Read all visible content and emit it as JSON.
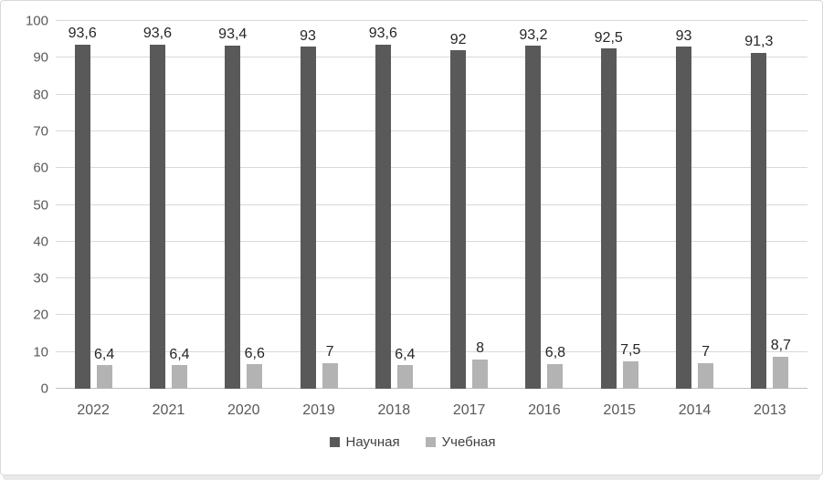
{
  "chart_data": {
    "type": "bar",
    "title": "",
    "categories": [
      "2022",
      "2021",
      "2020",
      "2019",
      "2018",
      "2017",
      "2016",
      "2015",
      "2014",
      "2013"
    ],
    "series": [
      {
        "name": "Научная",
        "color": "#595959",
        "values": [
          93.6,
          93.6,
          93.4,
          93,
          93.6,
          92,
          93.2,
          92.5,
          93,
          91.3
        ],
        "labels": [
          "93,6",
          "93,6",
          "93,4",
          "93",
          "93,6",
          "92",
          "93,2",
          "92,5",
          "93",
          "91,3"
        ]
      },
      {
        "name": "Учебная",
        "color": "#b3b3b3",
        "values": [
          6.4,
          6.4,
          6.6,
          7,
          6.4,
          8,
          6.8,
          7.5,
          7,
          8.7
        ],
        "labels": [
          "6,4",
          "6,4",
          "6,6",
          "7",
          "6,4",
          "8",
          "6,8",
          "7,5",
          "7",
          "8,7"
        ]
      }
    ],
    "ylim": [
      0,
      100
    ],
    "yticks": [
      0,
      10,
      20,
      30,
      40,
      50,
      60,
      70,
      80,
      90,
      100
    ],
    "grid": "horizontal-only",
    "legend_position": "bottom",
    "colors": {
      "gridline": "#d9d9d9",
      "axis_line": "#bfbfbf",
      "tick_label": "#595959",
      "data_label": "#262626"
    }
  }
}
